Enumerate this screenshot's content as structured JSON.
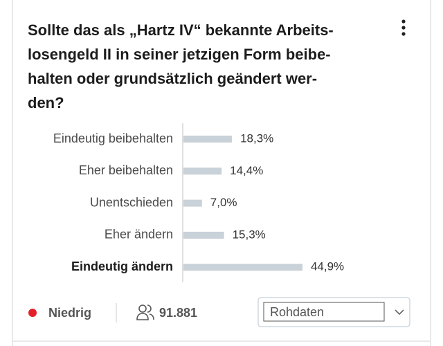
{
  "chart_data": {
    "type": "hbar",
    "title": [
      "Sollte das als „Hartz IV“ bekannte Arbeits-",
      "losengeld II in seiner jetzigen Form beibe-",
      "halten oder grundsätzlich geändert wer-",
      "den?"
    ],
    "categories": [
      "Eindeutig beibehalten",
      "Eher beibehalten",
      "Unentschieden",
      "Eher ändern",
      "Eindeutig ändern"
    ],
    "values": [
      18.3,
      14.4,
      7.0,
      15.3,
      44.9
    ],
    "value_labels": [
      "18,3%",
      "14,4%",
      "7,0%",
      "15,3%",
      "44,9%"
    ],
    "color": "#c9d1d9"
  },
  "footer": {
    "status": "Niedrig",
    "participants": "91.881",
    "select": "Rohdaten"
  }
}
